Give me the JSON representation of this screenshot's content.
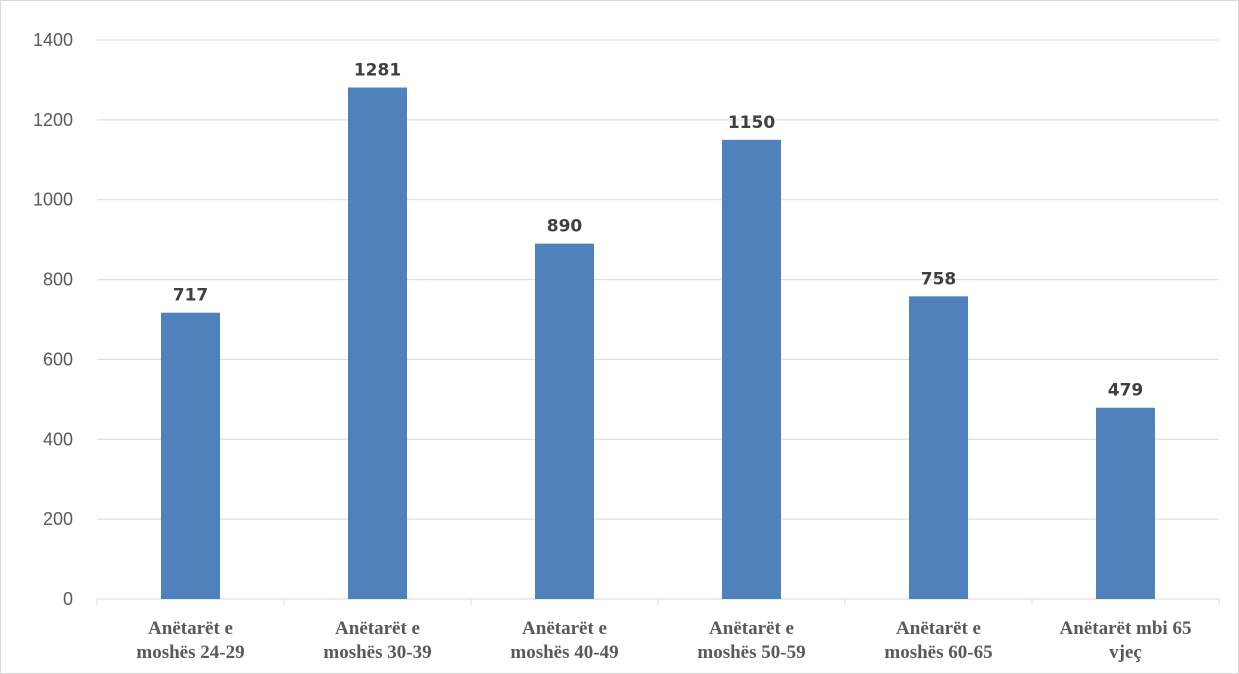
{
  "chart_data": {
    "type": "bar",
    "categories": [
      [
        "Anëtarët e",
        "moshës 24-29"
      ],
      [
        "Anëtarët e",
        "moshës 30-39"
      ],
      [
        "Anëtarët e",
        "moshës 40-49"
      ],
      [
        "Anëtarët e",
        "moshës 50-59"
      ],
      [
        "Anëtarët e",
        "moshës 60-65"
      ],
      [
        "Anëtarët mbi 65",
        "vjeç"
      ]
    ],
    "values": [
      717,
      1281,
      890,
      1150,
      758,
      479
    ],
    "ylim": [
      0,
      1400
    ],
    "yticks": [
      0,
      200,
      400,
      600,
      800,
      1000,
      1200,
      1400
    ],
    "grid": true,
    "bar_color": "#4f81bd",
    "data_labels": true,
    "title": "",
    "xlabel": "",
    "ylabel": ""
  }
}
